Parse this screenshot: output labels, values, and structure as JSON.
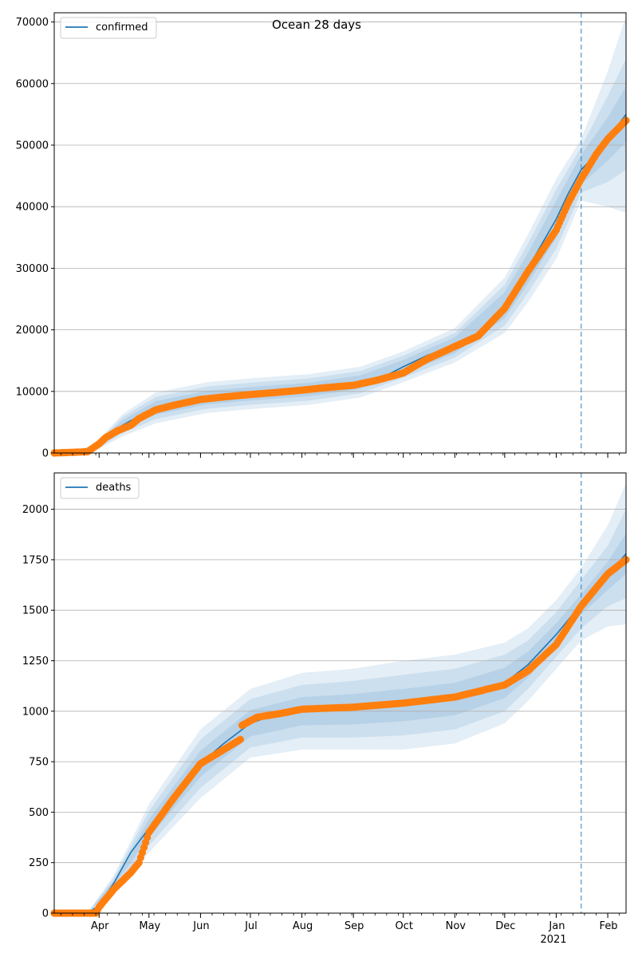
{
  "figure": {
    "title": "Ocean 28 days",
    "xaxis": {
      "ticks": [
        {
          "label": "Apr",
          "date": "2020-04-01"
        },
        {
          "label": "May",
          "date": "2020-05-01"
        },
        {
          "label": "Jun",
          "date": "2020-06-01"
        },
        {
          "label": "Jul",
          "date": "2020-07-01"
        },
        {
          "label": "Aug",
          "date": "2020-08-01"
        },
        {
          "label": "Sep",
          "date": "2020-09-01"
        },
        {
          "label": "Oct",
          "date": "2020-10-01"
        },
        {
          "label": "Nov",
          "date": "2020-11-01"
        },
        {
          "label": "Dec",
          "date": "2020-12-01"
        },
        {
          "label": "Jan",
          "date": "2021-01-01"
        },
        {
          "label": "Feb",
          "date": "2021-02-01"
        }
      ],
      "year_label": "2021",
      "xlim": [
        "2020-03-05",
        "2021-02-12"
      ]
    },
    "forecast_date": "2021-01-16",
    "colors": {
      "model": "#1f77b4",
      "observed": "#ff7f0e",
      "band": "#1f77b4",
      "vline": "#1f77b4",
      "grid": "#b0b0b0"
    }
  },
  "chart_data": [
    {
      "type": "line",
      "series_name": "confirmed",
      "ylim": [
        0,
        71500
      ],
      "yticks": [
        0,
        10000,
        20000,
        30000,
        40000,
        50000,
        60000,
        70000
      ],
      "grid": "horizontal",
      "legend": "upper-left",
      "model_x": [
        "2020-03-05",
        "2020-03-20",
        "2020-03-28",
        "2020-04-05",
        "2020-04-15",
        "2020-04-25",
        "2020-05-05",
        "2020-05-20",
        "2020-06-05",
        "2020-06-20",
        "2020-07-05",
        "2020-07-20",
        "2020-08-05",
        "2020-08-20",
        "2020-09-05",
        "2020-09-20",
        "2020-10-01",
        "2020-10-15",
        "2020-11-01",
        "2020-11-15",
        "2020-12-01",
        "2020-12-15",
        "2021-01-01",
        "2021-01-08",
        "2021-01-16",
        "2021-01-25",
        "2021-02-01",
        "2021-02-12"
      ],
      "model_y": [
        0,
        0,
        600,
        2500,
        4500,
        6000,
        7300,
        8300,
        9000,
        9400,
        9700,
        9900,
        10300,
        10800,
        11500,
        12500,
        14000,
        15800,
        17500,
        19500,
        24000,
        30000,
        38000,
        42000,
        46000,
        48500,
        51000,
        55000
      ],
      "band_x": [
        "2020-03-05",
        "2020-03-28",
        "2020-04-15",
        "2020-05-05",
        "2020-06-05",
        "2020-07-05",
        "2020-08-05",
        "2020-09-05",
        "2020-10-01",
        "2020-11-01",
        "2020-12-01",
        "2020-12-15",
        "2021-01-01",
        "2021-01-16",
        "2021-02-01",
        "2021-02-12"
      ],
      "band_center": [
        0,
        600,
        4500,
        7300,
        9000,
        9700,
        10300,
        11500,
        14000,
        17500,
        24000,
        30000,
        38000,
        46000,
        51000,
        55000
      ],
      "band_halfwidths": [
        [
          0,
          500,
          1800,
          2500,
          2500,
          2500,
          2500,
          2500,
          2500,
          2800,
          4500,
          5500,
          6500,
          5000,
          11000,
          16000
        ],
        [
          0,
          350,
          1300,
          1800,
          1800,
          1800,
          1800,
          1800,
          1800,
          2000,
          3300,
          4000,
          4800,
          3700,
          7000,
          9000
        ],
        [
          0,
          200,
          800,
          1100,
          1100,
          1100,
          1100,
          1100,
          1100,
          1300,
          2100,
          2500,
          3000,
          2400,
          3500,
          4500
        ]
      ],
      "observed_x": [
        "2020-03-05",
        "2020-03-25",
        "2020-04-01",
        "2020-04-05",
        "2020-04-12",
        "2020-04-20",
        "2020-04-25",
        "2020-05-05",
        "2020-05-15",
        "2020-06-01",
        "2020-06-15",
        "2020-07-01",
        "2020-07-15",
        "2020-08-01",
        "2020-08-15",
        "2020-09-01",
        "2020-09-15",
        "2020-10-01",
        "2020-10-15",
        "2020-11-01",
        "2020-11-15",
        "2020-12-01",
        "2020-12-15",
        "2021-01-01",
        "2021-01-08",
        "2021-01-16",
        "2021-01-25",
        "2021-02-01",
        "2021-02-12"
      ],
      "observed_y": [
        0,
        200,
        1500,
        2500,
        3600,
        4500,
        5600,
        7000,
        7700,
        8700,
        9100,
        9500,
        9800,
        10200,
        10600,
        11000,
        11800,
        13000,
        15200,
        17300,
        19000,
        23500,
        29500,
        36200,
        40500,
        44500,
        48500,
        51000,
        54000
      ]
    },
    {
      "type": "line",
      "series_name": "deaths",
      "ylim": [
        0,
        2180
      ],
      "yticks": [
        0,
        250,
        500,
        750,
        1000,
        1250,
        1500,
        1750,
        2000
      ],
      "grid": "horizontal",
      "legend": "upper-left",
      "model_x": [
        "2020-03-05",
        "2020-03-25",
        "2020-04-01",
        "2020-04-10",
        "2020-04-20",
        "2020-05-01",
        "2020-05-15",
        "2020-06-01",
        "2020-06-15",
        "2020-07-01",
        "2020-07-15",
        "2020-08-01",
        "2020-09-01",
        "2020-10-01",
        "2020-11-01",
        "2020-12-01",
        "2020-12-15",
        "2021-01-01",
        "2021-01-16",
        "2021-02-01",
        "2021-02-12"
      ],
      "model_y": [
        0,
        0,
        40,
        150,
        300,
        420,
        580,
        740,
        840,
        940,
        980,
        1000,
        1010,
        1030,
        1060,
        1140,
        1230,
        1380,
        1530,
        1670,
        1780
      ],
      "band_x": [
        "2020-03-05",
        "2020-03-25",
        "2020-04-10",
        "2020-05-01",
        "2020-06-01",
        "2020-07-01",
        "2020-08-01",
        "2020-09-01",
        "2020-10-01",
        "2020-11-01",
        "2020-12-01",
        "2020-12-15",
        "2021-01-01",
        "2021-01-16",
        "2021-02-01",
        "2021-02-12"
      ],
      "band_center": [
        0,
        0,
        150,
        420,
        740,
        940,
        1000,
        1010,
        1030,
        1060,
        1140,
        1230,
        1380,
        1530,
        1670,
        1780
      ],
      "band_halfwidths": [
        [
          0,
          0,
          40,
          120,
          170,
          170,
          190,
          200,
          220,
          220,
          200,
          180,
          170,
          180,
          250,
          350
        ],
        [
          0,
          0,
          25,
          85,
          120,
          120,
          130,
          140,
          150,
          150,
          140,
          120,
          110,
          120,
          150,
          220
        ],
        [
          0,
          0,
          12,
          45,
          65,
          65,
          70,
          75,
          80,
          80,
          75,
          65,
          55,
          50,
          70,
          100
        ]
      ],
      "observed_x": [
        "2020-03-05",
        "2020-03-30",
        "2020-04-01",
        "2020-04-10",
        "2020-04-20",
        "2020-04-25",
        "2020-05-01",
        "2020-05-15",
        "2020-06-01",
        "2020-06-15",
        "2020-06-25",
        "2020-06-26",
        "2020-07-05",
        "2020-07-20",
        "2020-08-01",
        "2020-09-01",
        "2020-10-01",
        "2020-11-01",
        "2020-12-01",
        "2020-12-15",
        "2021-01-01",
        "2021-01-16",
        "2021-02-01",
        "2021-02-12"
      ],
      "observed_y": [
        0,
        0,
        30,
        120,
        200,
        250,
        400,
        560,
        740,
        810,
        860,
        930,
        970,
        990,
        1010,
        1020,
        1040,
        1070,
        1130,
        1200,
        1330,
        1520,
        1680,
        1750
      ]
    }
  ]
}
